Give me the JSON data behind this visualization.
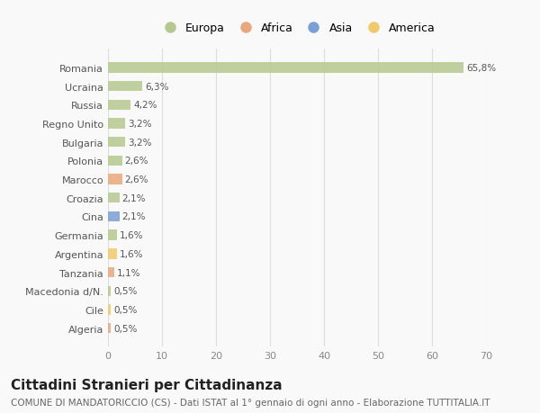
{
  "categories": [
    "Algeria",
    "Cile",
    "Macedonia d/N.",
    "Tanzania",
    "Argentina",
    "Germania",
    "Cina",
    "Croazia",
    "Marocco",
    "Polonia",
    "Bulgaria",
    "Regno Unito",
    "Russia",
    "Ucraina",
    "Romania"
  ],
  "values": [
    0.5,
    0.5,
    0.5,
    1.1,
    1.6,
    1.6,
    2.1,
    2.1,
    2.6,
    2.6,
    3.2,
    3.2,
    4.2,
    6.3,
    65.8
  ],
  "labels": [
    "0,5%",
    "0,5%",
    "0,5%",
    "1,1%",
    "1,6%",
    "1,6%",
    "2,1%",
    "2,1%",
    "2,6%",
    "2,6%",
    "3,2%",
    "3,2%",
    "4,2%",
    "6,3%",
    "65,8%"
  ],
  "colors": [
    "#e8a87c",
    "#f0c96a",
    "#b5c98e",
    "#e8a87c",
    "#f0c96a",
    "#b5c98e",
    "#7a9fd4",
    "#b5c98e",
    "#e8a87c",
    "#b5c98e",
    "#b5c98e",
    "#b5c98e",
    "#b5c98e",
    "#b5c98e",
    "#b5c98e"
  ],
  "legend_labels": [
    "Europa",
    "Africa",
    "Asia",
    "America"
  ],
  "legend_colors": [
    "#b5c98e",
    "#e8a87c",
    "#7a9fd4",
    "#f0c96a"
  ],
  "xlim": [
    0,
    70
  ],
  "xticks": [
    0,
    10,
    20,
    30,
    40,
    50,
    60,
    70
  ],
  "title": "Cittadini Stranieri per Cittadinanza",
  "subtitle": "COMUNE DI MANDATORICCIO (CS) - Dati ISTAT al 1° gennaio di ogni anno - Elaborazione TUTTITALIA.IT",
  "background_color": "#f9f9f9",
  "grid_color": "#dddddd",
  "bar_height": 0.55,
  "title_fontsize": 11,
  "subtitle_fontsize": 7.5,
  "label_fontsize": 7.5,
  "tick_fontsize": 8,
  "legend_fontsize": 9
}
